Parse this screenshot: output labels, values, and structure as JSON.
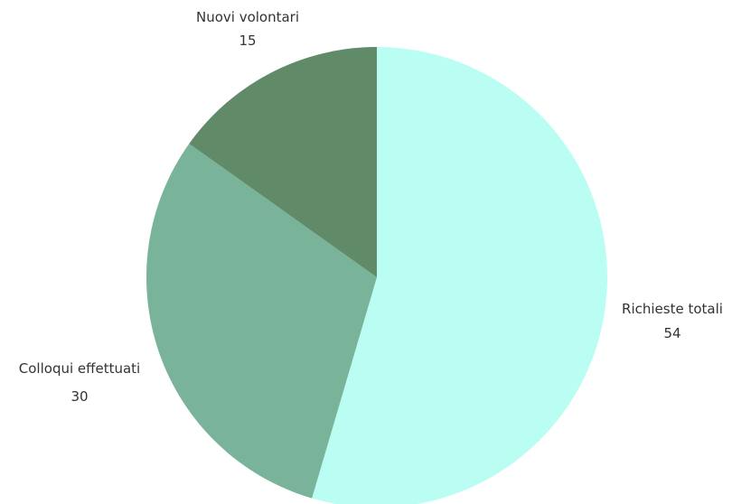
{
  "chart_data": {
    "type": "pie",
    "slices": [
      {
        "label": "Richieste totali",
        "value": 54,
        "value_label": "54",
        "color": "#bafdf3"
      },
      {
        "label": "Colloqui effettuati",
        "value": 30,
        "value_label": "30",
        "color": "#79b49a"
      },
      {
        "label": "Nuovi volontari",
        "value": 15,
        "value_label": "15",
        "color": "#618b68"
      }
    ],
    "start": "12 o'clock",
    "direction": "clockwise"
  }
}
